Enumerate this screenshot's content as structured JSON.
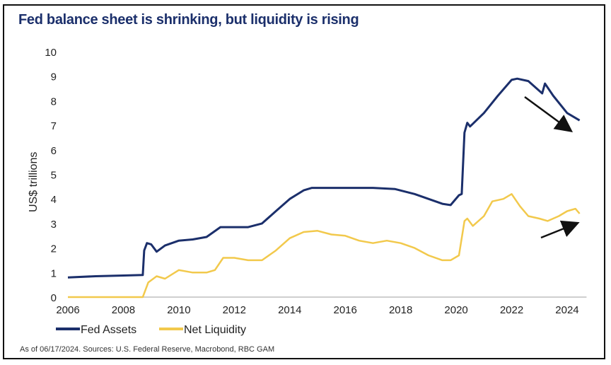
{
  "title": "Fed balance sheet is shrinking, but liquidity is rising",
  "source": "As of 06/17/2024. Sources: U.S. Federal Reserve, Macrobond, RBC GAM",
  "chart_data": {
    "type": "line",
    "title": "Fed balance sheet is shrinking, but liquidity is rising",
    "xlabel": "",
    "ylabel": "US$ trillions",
    "xlim": [
      2006,
      2024.7
    ],
    "ylim": [
      0,
      10
    ],
    "xticks": [
      "2006",
      "2008",
      "2010",
      "2012",
      "2014",
      "2016",
      "2018",
      "2020",
      "2022",
      "2024"
    ],
    "yticks": [
      "0",
      "1",
      "2",
      "3",
      "4",
      "5",
      "6",
      "7",
      "8",
      "9",
      "10"
    ],
    "grid": false,
    "legend": "bottom-left",
    "series": [
      {
        "name": "Fed Assets",
        "color": "#1b2f6b",
        "x": [
          2006,
          2007,
          2008,
          2008.7,
          2008.75,
          2008.85,
          2009.0,
          2009.2,
          2009.5,
          2010,
          2010.5,
          2011,
          2011.5,
          2012,
          2012.5,
          2013,
          2013.5,
          2014,
          2014.5,
          2014.8,
          2015.5,
          2016,
          2017,
          2017.8,
          2018.5,
          2019,
          2019.5,
          2019.8,
          2020.1,
          2020.2,
          2020.3,
          2020.4,
          2020.5,
          2021,
          2021.5,
          2022,
          2022.2,
          2022.6,
          2022.9,
          2023.1,
          2023.2,
          2023.5,
          2024,
          2024.45
        ],
        "values": [
          0.8,
          0.85,
          0.88,
          0.9,
          1.9,
          2.2,
          2.15,
          1.85,
          2.1,
          2.3,
          2.35,
          2.45,
          2.85,
          2.85,
          2.85,
          3.0,
          3.5,
          4.0,
          4.35,
          4.45,
          4.45,
          4.45,
          4.45,
          4.4,
          4.2,
          4.0,
          3.8,
          3.75,
          4.15,
          4.2,
          6.7,
          7.1,
          6.95,
          7.5,
          8.2,
          8.85,
          8.9,
          8.8,
          8.5,
          8.3,
          8.7,
          8.2,
          7.5,
          7.2
        ]
      },
      {
        "name": "Net Liquidity",
        "color": "#f2c94c",
        "x": [
          2006,
          2007,
          2008,
          2008.7,
          2008.9,
          2009.2,
          2009.5,
          2010,
          2010.5,
          2011,
          2011.3,
          2011.6,
          2012,
          2012.5,
          2013,
          2013.5,
          2014,
          2014.5,
          2015,
          2015.5,
          2016,
          2016.5,
          2017,
          2017.5,
          2018,
          2018.5,
          2019,
          2019.5,
          2019.8,
          2020.1,
          2020.3,
          2020.4,
          2020.6,
          2021,
          2021.3,
          2021.7,
          2022,
          2022.3,
          2022.6,
          2023,
          2023.3,
          2023.7,
          2024,
          2024.3,
          2024.45
        ],
        "values": [
          0,
          0,
          0,
          0,
          0.6,
          0.85,
          0.75,
          1.1,
          1.0,
          1.0,
          1.1,
          1.6,
          1.6,
          1.5,
          1.5,
          1.9,
          2.4,
          2.65,
          2.7,
          2.55,
          2.5,
          2.3,
          2.2,
          2.3,
          2.2,
          2.0,
          1.7,
          1.5,
          1.5,
          1.7,
          3.1,
          3.2,
          2.9,
          3.3,
          3.9,
          4.0,
          4.2,
          3.7,
          3.3,
          3.2,
          3.1,
          3.3,
          3.5,
          3.6,
          3.4
        ]
      }
    ]
  }
}
